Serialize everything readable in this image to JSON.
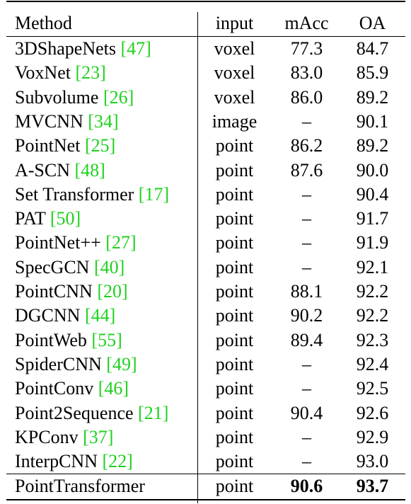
{
  "table": {
    "headers": {
      "method": "Method",
      "input": "input",
      "macc": "mAcc",
      "oa": "OA"
    },
    "rows": [
      {
        "method": "3DShapeNets",
        "cite": "[47]",
        "input": "voxel",
        "macc": "77.3",
        "oa": "84.7"
      },
      {
        "method": "VoxNet",
        "cite": "[23]",
        "input": "voxel",
        "macc": "83.0",
        "oa": "85.9"
      },
      {
        "method": "Subvolume",
        "cite": "[26]",
        "input": "voxel",
        "macc": "86.0",
        "oa": "89.2"
      },
      {
        "method": "MVCNN",
        "cite": "[34]",
        "input": "image",
        "macc": "–",
        "oa": "90.1"
      },
      {
        "method": "PointNet",
        "cite": "[25]",
        "input": "point",
        "macc": "86.2",
        "oa": "89.2"
      },
      {
        "method": "A-SCN",
        "cite": "[48]",
        "input": "point",
        "macc": "87.6",
        "oa": "90.0"
      },
      {
        "method": "Set Transformer",
        "cite": "[17]",
        "input": "point",
        "macc": "–",
        "oa": "90.4"
      },
      {
        "method": "PAT",
        "cite": "[50]",
        "input": "point",
        "macc": "–",
        "oa": "91.7"
      },
      {
        "method": "PointNet++",
        "cite": "[27]",
        "input": "point",
        "macc": "–",
        "oa": "91.9"
      },
      {
        "method": "SpecGCN",
        "cite": "[40]",
        "input": "point",
        "macc": "–",
        "oa": "92.1"
      },
      {
        "method": "PointCNN",
        "cite": "[20]",
        "input": "point",
        "macc": "88.1",
        "oa": "92.2"
      },
      {
        "method": "DGCNN",
        "cite": "[44]",
        "input": "point",
        "macc": "90.2",
        "oa": "92.2"
      },
      {
        "method": "PointWeb",
        "cite": "[55]",
        "input": "point",
        "macc": "89.4",
        "oa": "92.3"
      },
      {
        "method": "SpiderCNN",
        "cite": "[49]",
        "input": "point",
        "macc": "–",
        "oa": "92.4"
      },
      {
        "method": "PointConv",
        "cite": "[46]",
        "input": "point",
        "macc": "–",
        "oa": "92.5"
      },
      {
        "method": "Point2Sequence",
        "cite": "[21]",
        "input": "point",
        "macc": "90.4",
        "oa": "92.6"
      },
      {
        "method": "KPConv",
        "cite": "[37]",
        "input": "point",
        "macc": "–",
        "oa": "92.9"
      },
      {
        "method": "InterpCNN",
        "cite": "[22]",
        "input": "point",
        "macc": "–",
        "oa": "93.0"
      }
    ],
    "final_row": {
      "method": "PointTransformer",
      "input": "point",
      "macc": "90.6",
      "oa": "93.7"
    }
  }
}
